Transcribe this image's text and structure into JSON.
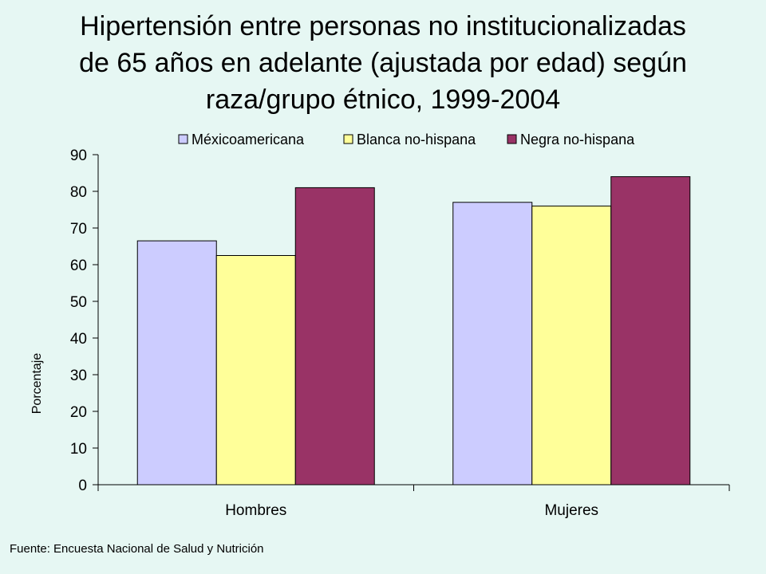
{
  "title": {
    "lines": [
      "Hipertensión entre personas no institucionalizadas",
      "de 65 años en adelante (ajustada por edad) según",
      "raza/grupo étnico, 1999-2004"
    ]
  },
  "source": "Fuente: Encuesta Nacional de Salud y Nutrición",
  "chart_data": {
    "type": "bar",
    "categories": [
      "Hombres",
      "Mujeres"
    ],
    "series": [
      {
        "name": "Méxicoamericana",
        "values": [
          66.5,
          77
        ],
        "color": "#ccccff"
      },
      {
        "name": "Blanca no-hispana",
        "values": [
          62.5,
          76
        ],
        "color": "#ffff99"
      },
      {
        "name": "Negra no-hispana",
        "values": [
          81,
          84
        ],
        "color": "#993366"
      }
    ],
    "ylabel": "Porcentaje",
    "ylim": [
      0,
      90
    ],
    "yticks": [
      0,
      10,
      20,
      30,
      40,
      50,
      60,
      70,
      80,
      90
    ],
    "legend_position": "top",
    "grid": false
  }
}
